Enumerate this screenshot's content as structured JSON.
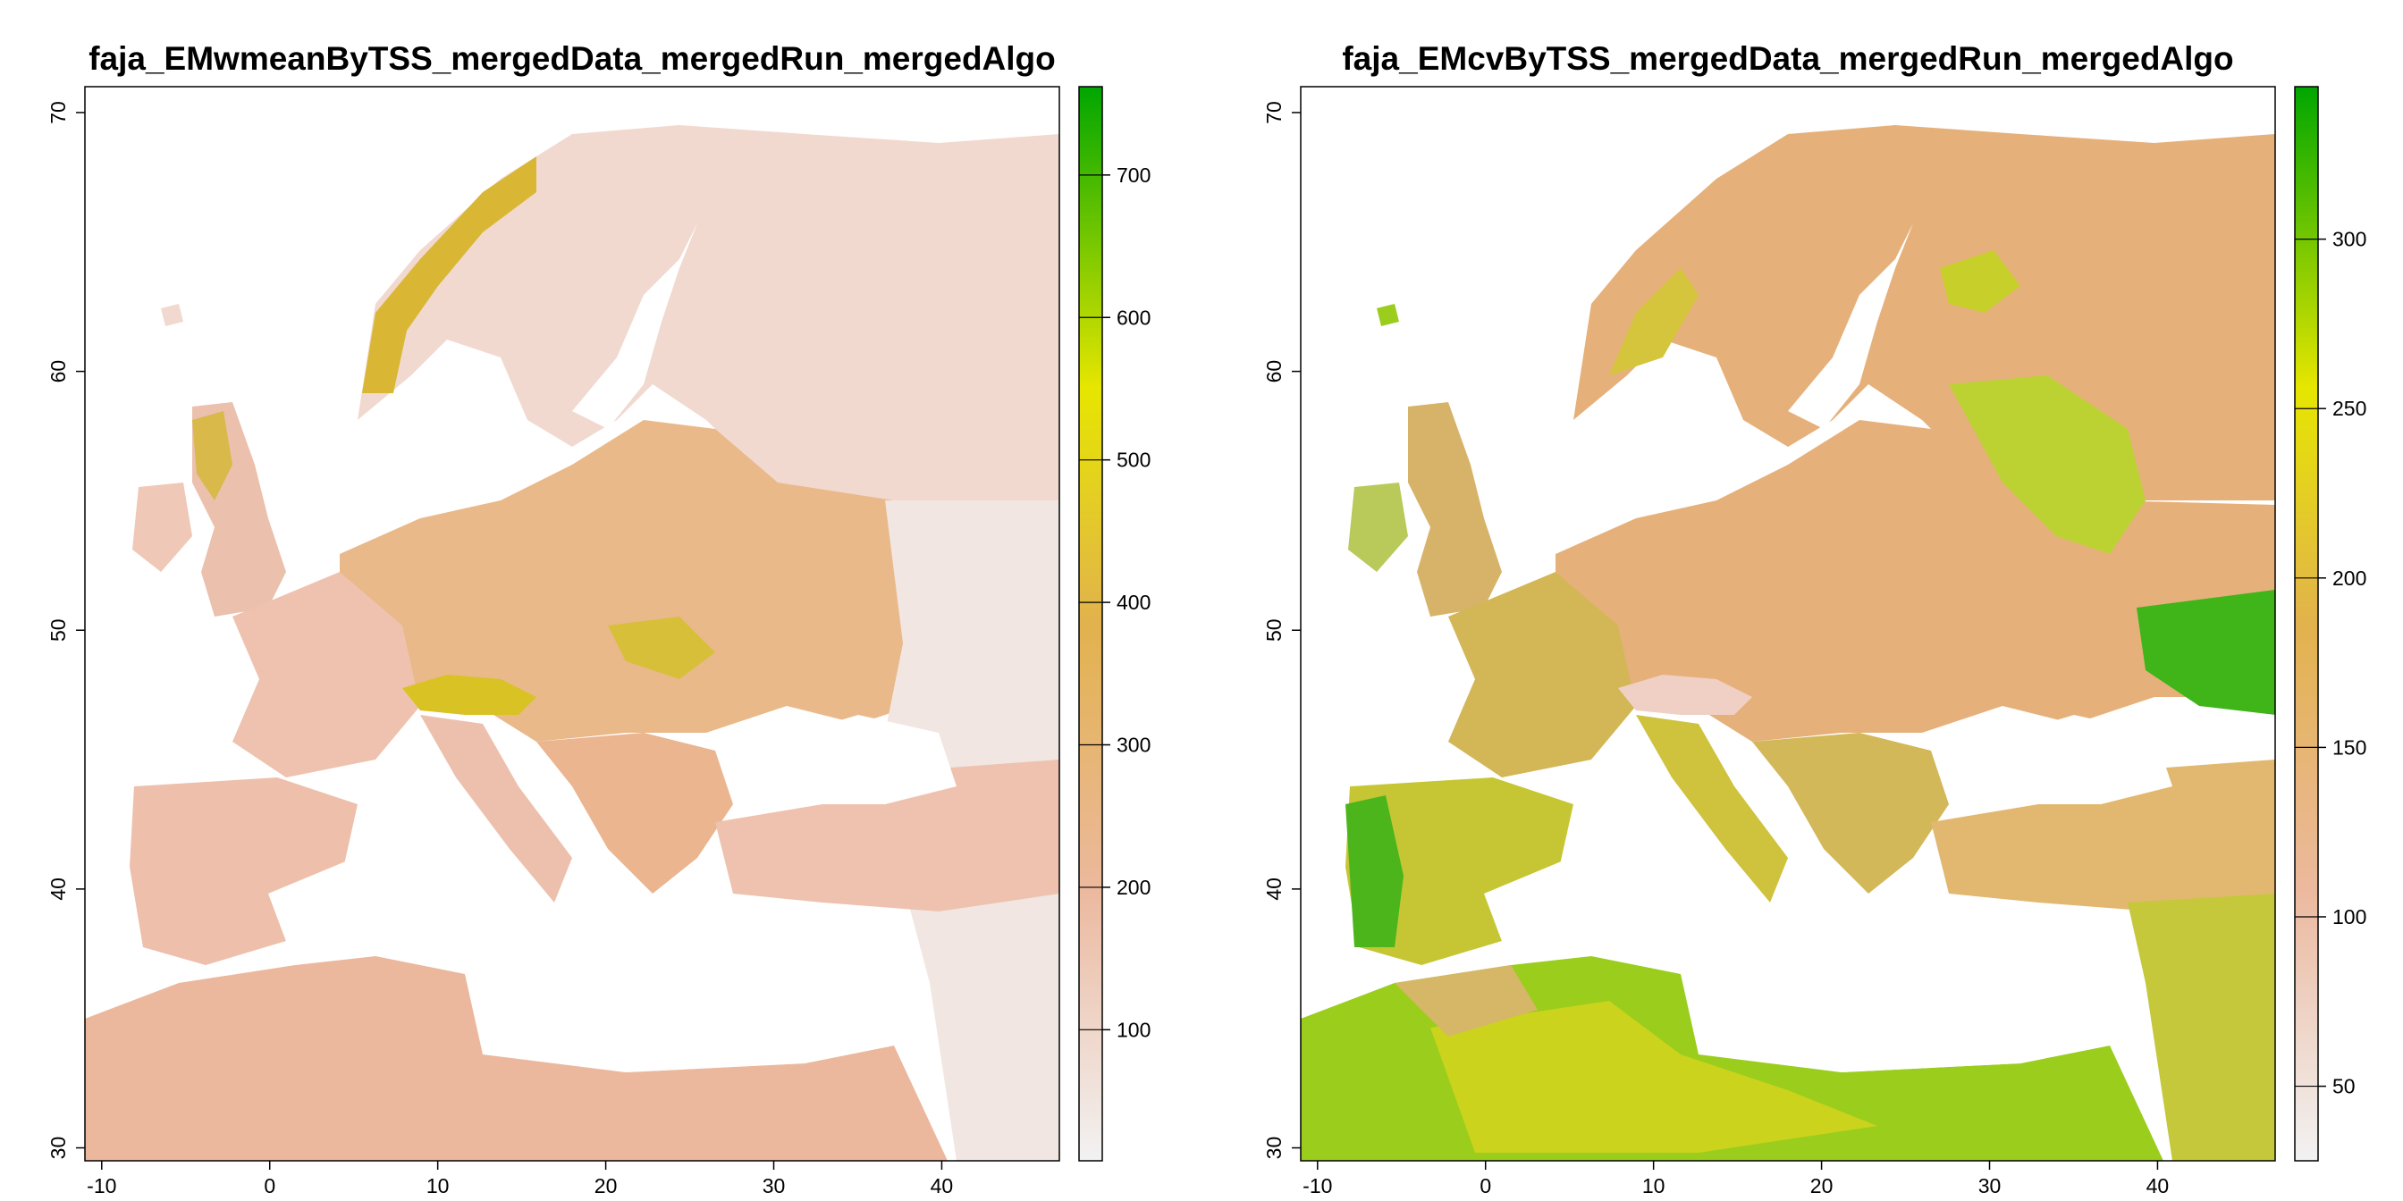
{
  "panels": [
    {
      "title": "faja_EMwmeanByTSS_mergedData_mergedRun_mergedAlgo",
      "x_ticks": [
        -10,
        0,
        10,
        20,
        30,
        40
      ],
      "y_ticks": [
        30,
        40,
        50,
        60,
        70
      ],
      "x_range": [
        -11,
        47
      ],
      "y_range": [
        29.5,
        71
      ],
      "legend_range": [
        8,
        762
      ],
      "legend_ticks": [
        100,
        200,
        300,
        400,
        500,
        600,
        700
      ],
      "colors": {
        "low": "#f2f2f2",
        "mid_low": "#ecb99f",
        "mid": "#e2b24d",
        "mid_high": "#e6e600",
        "high": "#00a600"
      },
      "map": {
        "north": "#f1d9cf",
        "central": "#e9b98a",
        "south": "#eec4b2",
        "africa": "#ebb89d",
        "east": "#f1e6e2",
        "mountains": "#d9c224"
      }
    },
    {
      "title": "faja_EMcvByTSS_mergedData_mergedRun_mergedAlgo",
      "x_ticks": [
        -10,
        0,
        10,
        20,
        30,
        40
      ],
      "y_ticks": [
        30,
        40,
        50,
        60,
        70
      ],
      "x_range": [
        -11,
        47
      ],
      "y_range": [
        29.5,
        71
      ],
      "legend_range": [
        28,
        345
      ],
      "legend_ticks": [
        50,
        100,
        150,
        200,
        250,
        300
      ],
      "colors": {
        "low": "#f2f2f2",
        "mid_low": "#ecb99f",
        "mid": "#e2b24d",
        "mid_high": "#e6e600",
        "high": "#00a600"
      },
      "map": {
        "north": "#e6b07a",
        "central": "#e6b07a",
        "south": "#d9c73a",
        "africa": "#9acd1c",
        "east": "#e2b870",
        "mountains": "#66c11a"
      }
    }
  ]
}
